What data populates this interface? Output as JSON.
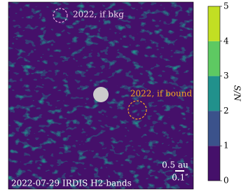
{
  "chart_data": {
    "type": "image",
    "annotations": {
      "bkg": "2022, if bkg",
      "bound": "2022, if bound",
      "scale_au": "0.5 au",
      "scale_arcsec": "0.1″",
      "caption": "2022-07-29 IRDIS H2-bands"
    },
    "colorbar": {
      "label": "S/N",
      "clim": [
        0,
        5
      ],
      "ticks": [
        0,
        1,
        2,
        3,
        4,
        5
      ],
      "colors": [
        "#45106a",
        "#3b528b",
        "#21918c",
        "#5ec962",
        "#c2df23"
      ]
    }
  }
}
